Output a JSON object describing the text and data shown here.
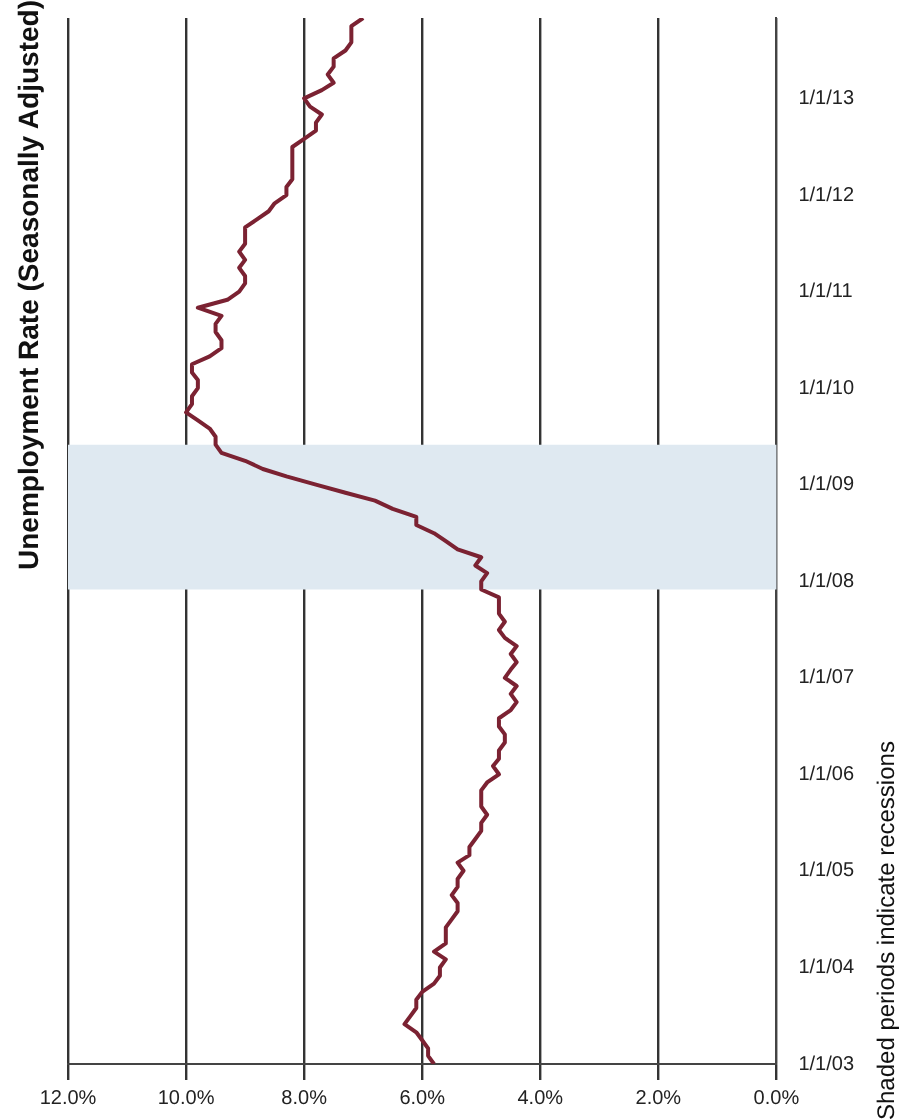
{
  "chart_data": {
    "type": "line",
    "orientation": "horizontal",
    "title": "Unemployment Rate (Seasonally Adjusted)",
    "annotations": [
      "Shaded periods indicate recessions"
    ],
    "x": [
      "2003-01",
      "2003-02",
      "2003-03",
      "2003-04",
      "2003-05",
      "2003-06",
      "2003-07",
      "2003-08",
      "2003-09",
      "2003-10",
      "2003-11",
      "2003-12",
      "2004-01",
      "2004-02",
      "2004-03",
      "2004-04",
      "2004-05",
      "2004-06",
      "2004-07",
      "2004-08",
      "2004-09",
      "2004-10",
      "2004-11",
      "2004-12",
      "2005-01",
      "2005-02",
      "2005-03",
      "2005-04",
      "2005-05",
      "2005-06",
      "2005-07",
      "2005-08",
      "2005-09",
      "2005-10",
      "2005-11",
      "2005-12",
      "2006-01",
      "2006-02",
      "2006-03",
      "2006-04",
      "2006-05",
      "2006-06",
      "2006-07",
      "2006-08",
      "2006-09",
      "2006-10",
      "2006-11",
      "2006-12",
      "2007-01",
      "2007-02",
      "2007-03",
      "2007-04",
      "2007-05",
      "2007-06",
      "2007-07",
      "2007-08",
      "2007-09",
      "2007-10",
      "2007-11",
      "2007-12",
      "2008-01",
      "2008-02",
      "2008-03",
      "2008-04",
      "2008-05",
      "2008-06",
      "2008-07",
      "2008-08",
      "2008-09",
      "2008-10",
      "2008-11",
      "2008-12",
      "2009-01",
      "2009-02",
      "2009-03",
      "2009-04",
      "2009-05",
      "2009-06",
      "2009-07",
      "2009-08",
      "2009-09",
      "2009-10",
      "2009-11",
      "2009-12",
      "2010-01",
      "2010-02",
      "2010-03",
      "2010-04",
      "2010-05",
      "2010-06",
      "2010-07",
      "2010-08",
      "2010-09",
      "2010-10",
      "2010-11",
      "2010-12",
      "2011-01",
      "2011-02",
      "2011-03",
      "2011-04",
      "2011-05",
      "2011-06",
      "2011-07",
      "2011-08",
      "2011-09",
      "2011-10",
      "2011-11",
      "2011-12",
      "2012-01",
      "2012-02",
      "2012-03",
      "2012-04",
      "2012-05",
      "2012-06",
      "2012-07",
      "2012-08",
      "2012-09",
      "2012-10",
      "2012-11",
      "2012-12",
      "2013-01",
      "2013-02",
      "2013-03",
      "2013-04",
      "2013-05",
      "2013-06",
      "2013-07",
      "2013-08",
      "2013-09",
      "2013-10",
      "2013-11"
    ],
    "series": [
      {
        "color": "#7b2232",
        "values": [
          5.8,
          5.9,
          5.9,
          6.0,
          6.1,
          6.3,
          6.2,
          6.1,
          6.1,
          6.0,
          5.8,
          5.7,
          5.7,
          5.6,
          5.8,
          5.6,
          5.6,
          5.6,
          5.5,
          5.4,
          5.4,
          5.5,
          5.4,
          5.4,
          5.3,
          5.4,
          5.2,
          5.2,
          5.1,
          5.0,
          5.0,
          4.9,
          5.0,
          5.0,
          5.0,
          4.9,
          4.7,
          4.8,
          4.7,
          4.7,
          4.6,
          4.6,
          4.7,
          4.7,
          4.5,
          4.4,
          4.5,
          4.4,
          4.6,
          4.5,
          4.4,
          4.5,
          4.4,
          4.6,
          4.7,
          4.6,
          4.7,
          4.7,
          4.7,
          5.0,
          5.0,
          4.9,
          5.1,
          5.0,
          5.4,
          5.6,
          5.8,
          6.1,
          6.1,
          6.5,
          6.8,
          7.3,
          7.8,
          8.3,
          8.7,
          9.0,
          9.4,
          9.5,
          9.5,
          9.6,
          9.8,
          10.0,
          9.9,
          9.9,
          9.8,
          9.8,
          9.9,
          9.9,
          9.6,
          9.4,
          9.4,
          9.5,
          9.5,
          9.4,
          9.8,
          9.3,
          9.1,
          9.0,
          9.0,
          9.1,
          9.0,
          9.1,
          9.0,
          9.0,
          9.0,
          8.8,
          8.6,
          8.5,
          8.3,
          8.3,
          8.2,
          8.2,
          8.2,
          8.2,
          8.2,
          8.0,
          7.8,
          7.8,
          7.7,
          7.9,
          8.0,
          7.7,
          7.5,
          7.6,
          7.5,
          7.5,
          7.3,
          7.2,
          7.2,
          7.2,
          7.0
        ]
      }
    ],
    "xlim": [
      12,
      0
    ],
    "xticks": [
      {
        "value": 12,
        "label": "12.0%"
      },
      {
        "value": 10,
        "label": "10.0%"
      },
      {
        "value": 8,
        "label": "8.0%"
      },
      {
        "value": 6,
        "label": "6.0%"
      },
      {
        "value": 4,
        "label": "4.0%"
      },
      {
        "value": 2,
        "label": "2.0%"
      },
      {
        "value": 0,
        "label": "0.0%"
      }
    ],
    "ylim": [
      "2003-01-01",
      "2013-11-01"
    ],
    "yticks": [
      {
        "value": "2003-01-01",
        "label": "1/1/03"
      },
      {
        "value": "2004-01-01",
        "label": "1/1/04"
      },
      {
        "value": "2005-01-01",
        "label": "1/1/05"
      },
      {
        "value": "2006-01-01",
        "label": "1/1/06"
      },
      {
        "value": "2007-01-01",
        "label": "1/1/07"
      },
      {
        "value": "2008-01-01",
        "label": "1/1/08"
      },
      {
        "value": "2009-01-01",
        "label": "1/1/09"
      },
      {
        "value": "2010-01-01",
        "label": "1/1/10"
      },
      {
        "value": "2011-01-01",
        "label": "1/1/11"
      },
      {
        "value": "2012-01-01",
        "label": "1/1/12"
      },
      {
        "value": "2013-01-01",
        "label": "1/1/13"
      }
    ],
    "bands": [
      {
        "axis": "y",
        "from": "2007-12",
        "to": "2009-06",
        "color": "#dfe9f1"
      }
    ],
    "grid": "x",
    "legend": false,
    "marker": "none",
    "line_style": "solid"
  }
}
